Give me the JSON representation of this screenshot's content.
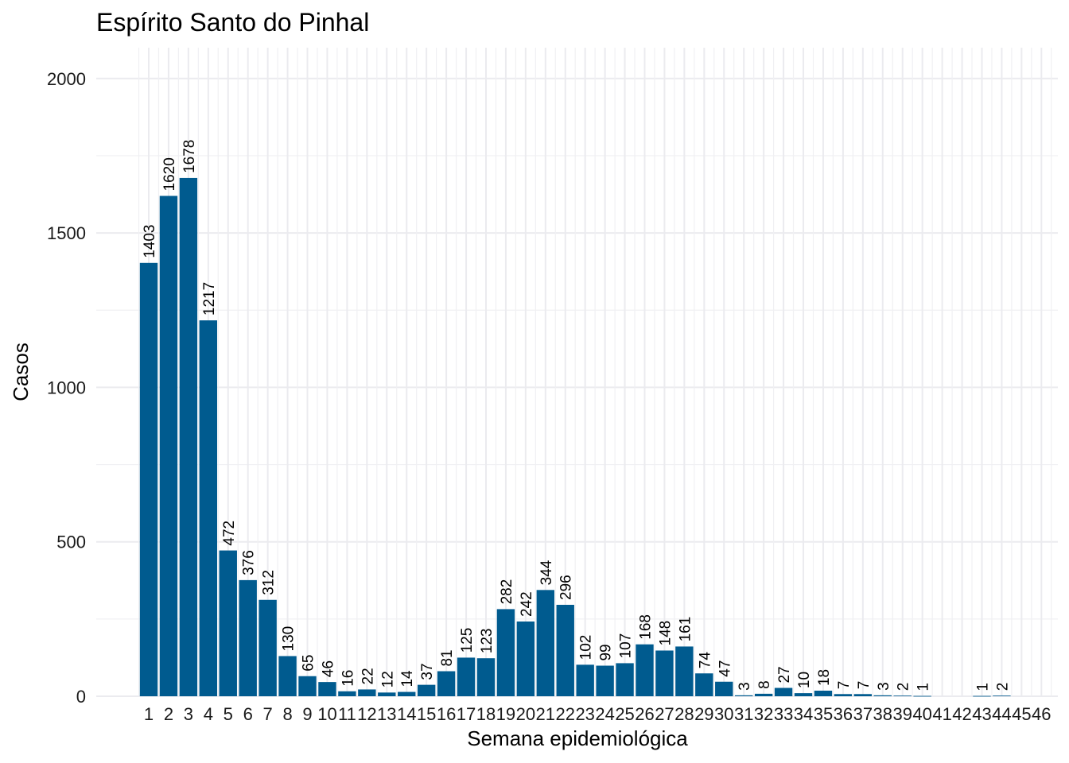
{
  "chart_data": {
    "type": "bar",
    "title": "Espírito Santo do Pinhal",
    "xlabel": "Semana epidemiológica",
    "ylabel": "Casos",
    "ylim": [
      0,
      2100
    ],
    "y_ticks": [
      0,
      500,
      1000,
      1500,
      2000
    ],
    "grid": true,
    "bar_color": "#005b8f",
    "categories": [
      "1",
      "2",
      "3",
      "4",
      "5",
      "6",
      "7",
      "8",
      "9",
      "10",
      "11",
      "12",
      "13",
      "14",
      "15",
      "16",
      "17",
      "18",
      "19",
      "20",
      "21",
      "22",
      "23",
      "24",
      "25",
      "26",
      "27",
      "28",
      "29",
      "30",
      "31",
      "32",
      "33",
      "34",
      "35",
      "36",
      "37",
      "38",
      "39",
      "40",
      "41",
      "42",
      "43",
      "44",
      "45",
      "46"
    ],
    "values": [
      1403,
      1620,
      1678,
      1217,
      472,
      376,
      312,
      130,
      65,
      46,
      16,
      22,
      12,
      14,
      37,
      81,
      125,
      123,
      282,
      242,
      344,
      296,
      102,
      99,
      107,
      168,
      148,
      161,
      74,
      47,
      3,
      8,
      27,
      10,
      18,
      7,
      7,
      3,
      2,
      1,
      0,
      0,
      1,
      2,
      0,
      0
    ],
    "data_labels": [
      "1403",
      "1620",
      "1678",
      "1217",
      "472",
      "376",
      "312",
      "130",
      "65",
      "46",
      "16",
      "22",
      "12",
      "14",
      "37",
      "81",
      "125",
      "123",
      "282",
      "242",
      "344",
      "296",
      "102",
      "99",
      "107",
      "168",
      "148",
      "161",
      "74",
      "47",
      "3",
      "8",
      "27",
      "10",
      "18",
      "7",
      "7",
      "3",
      "2",
      "1",
      "",
      "",
      "1",
      "2",
      "",
      ""
    ]
  }
}
